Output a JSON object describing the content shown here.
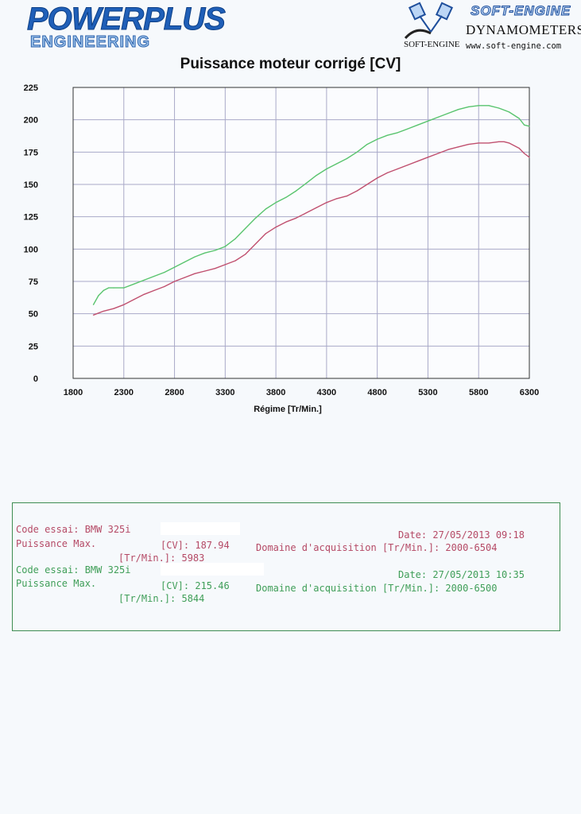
{
  "header": {
    "left_logo_line1": "POWERPLUS",
    "left_logo_line2": "ENGINEERING",
    "right_logo_title": "SOFT-ENGINE",
    "right_logo_sub": "DYNAMOMETERS",
    "right_logo_brand": "SOFT-ENGINE",
    "right_logo_url": "www.soft-engine.com"
  },
  "colors": {
    "run1": "#c0506f",
    "run2": "#59c46e",
    "grid": "#a9a9c8",
    "axis": "#333333",
    "box_border": "#3e8d52"
  },
  "chart_data": {
    "type": "line",
    "title": "Puissance moteur corrigé [CV]",
    "xlabel": "Régime [Tr/Min.]",
    "ylabel": "",
    "xlim": [
      1800,
      6300
    ],
    "ylim": [
      0,
      225
    ],
    "xticks": [
      1800,
      2300,
      2800,
      3300,
      3800,
      4300,
      4800,
      5300,
      5800,
      6300
    ],
    "yticks": [
      0,
      25,
      50,
      75,
      100,
      125,
      150,
      175,
      200,
      225
    ],
    "grid": true,
    "series": [
      {
        "name": "",
        "color": "#59c46e",
        "x": [
          2000,
          2050,
          2100,
          2150,
          2200,
          2300,
          2400,
          2500,
          2600,
          2700,
          2800,
          2900,
          3000,
          3100,
          3200,
          3300,
          3400,
          3500,
          3600,
          3700,
          3800,
          3900,
          4000,
          4100,
          4200,
          4300,
          4400,
          4500,
          4600,
          4700,
          4800,
          4900,
          5000,
          5100,
          5200,
          5300,
          5400,
          5500,
          5600,
          5700,
          5800,
          5900,
          6000,
          6100,
          6200,
          6250,
          6300
        ],
        "y": [
          57,
          64,
          68,
          70,
          70,
          70,
          73,
          76,
          79,
          82,
          86,
          90,
          94,
          97,
          99,
          102,
          108,
          116,
          124,
          131,
          136,
          140,
          145,
          151,
          157,
          162,
          166,
          170,
          175,
          181,
          185,
          188,
          190,
          193,
          196,
          199,
          202,
          205,
          208,
          210,
          211,
          211,
          209,
          206,
          201,
          196,
          195
        ]
      },
      {
        "name": "",
        "color": "#c0506f",
        "x": [
          2000,
          2100,
          2200,
          2300,
          2400,
          2500,
          2600,
          2700,
          2800,
          2900,
          3000,
          3100,
          3200,
          3300,
          3400,
          3500,
          3600,
          3700,
          3800,
          3900,
          4000,
          4100,
          4200,
          4300,
          4400,
          4500,
          4600,
          4700,
          4800,
          4900,
          5000,
          5100,
          5200,
          5300,
          5400,
          5500,
          5600,
          5700,
          5800,
          5900,
          6000,
          6050,
          6100,
          6200,
          6250,
          6300
        ],
        "y": [
          49,
          52,
          54,
          57,
          61,
          65,
          68,
          71,
          75,
          78,
          81,
          83,
          85,
          88,
          91,
          96,
          104,
          112,
          117,
          121,
          124,
          128,
          132,
          136,
          139,
          141,
          145,
          150,
          155,
          159,
          162,
          165,
          168,
          171,
          174,
          177,
          179,
          181,
          182,
          182,
          183,
          183,
          182,
          178,
          174,
          171
        ]
      }
    ]
  },
  "info": {
    "run1": {
      "code_label": "Code essai: ",
      "code_value": "BMW 325i",
      "date_label": "Date: ",
      "date_value": "27/05/2013 09:18",
      "puissance_label": "Puissance Max.",
      "cv_label": "[CV]: ",
      "cv_value": "187.94",
      "domaine_label": "Domaine d'acquisition [Tr/Min.]: ",
      "domaine_value": "2000-6504",
      "rpm_label": "[Tr/Min.]: ",
      "rpm_value": "5983"
    },
    "run2": {
      "code_label": "Code essai: ",
      "code_value": "BMW 325i",
      "date_label": "Date: ",
      "date_value": "27/05/2013 10:35",
      "puissance_label": "Puissance Max.",
      "cv_label": "[CV]: ",
      "cv_value": "215.46",
      "domaine_label": "Domaine d'acquisition [Tr/Min.]: ",
      "domaine_value": "2000-6500",
      "rpm_label": "[Tr/Min.]: ",
      "rpm_value": "5844"
    }
  }
}
